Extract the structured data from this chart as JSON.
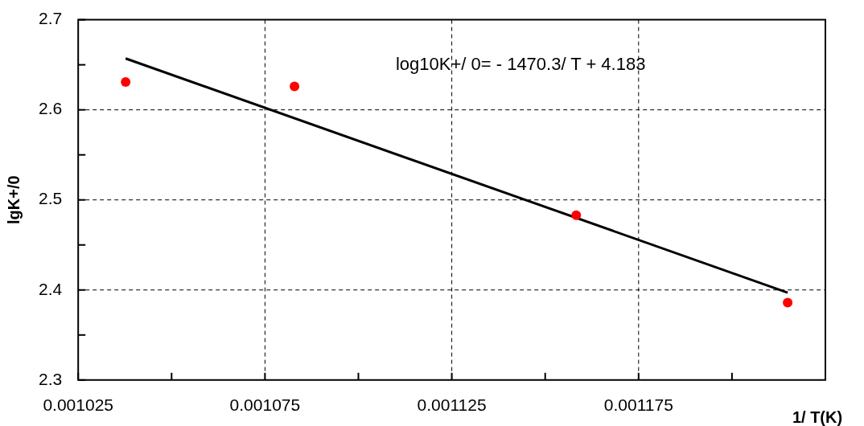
{
  "chart_data": {
    "type": "scatter",
    "xlabel": "1/ T(K)",
    "ylabel": "lgK+/0",
    "annotations": [
      "log10K+/ 0= - 1470.3/ T + 4.183"
    ],
    "series": [
      {
        "type": "scatter",
        "color": "#ff0000",
        "marker": "circle",
        "x": [
          0.0010377,
          0.0010829,
          0.0011583,
          0.0012149
        ],
        "values": [
          2.631,
          2.626,
          2.483,
          2.386
        ]
      },
      {
        "type": "line",
        "color": "#000000",
        "marker": "none",
        "line_style": "solid",
        "x": [
          0.0010377,
          0.0012149
        ],
        "values": [
          2.657,
          2.397
        ]
      }
    ],
    "xlim": [
      0.001025,
      0.001225
    ],
    "xticks": [
      0.001025,
      {
        "value": 0.00105,
        "label": null
      },
      0.001075,
      {
        "value": 0.0011,
        "label": null
      },
      0.001125,
      {
        "value": 0.00115,
        "label": null
      },
      0.001175,
      {
        "value": 0.0012,
        "label": null
      },
      {
        "value": 0.001225,
        "label": null
      }
    ],
    "ylim": [
      2.3,
      2.7
    ],
    "yticks": [
      2.3,
      {
        "value": 2.35,
        "label": null
      },
      2.4,
      {
        "value": 2.45,
        "label": null
      },
      2.5,
      {
        "value": 2.55,
        "label": null
      },
      2.6,
      {
        "value": 2.65,
        "label": null
      },
      2.7
    ],
    "grid": true,
    "legend": false
  }
}
